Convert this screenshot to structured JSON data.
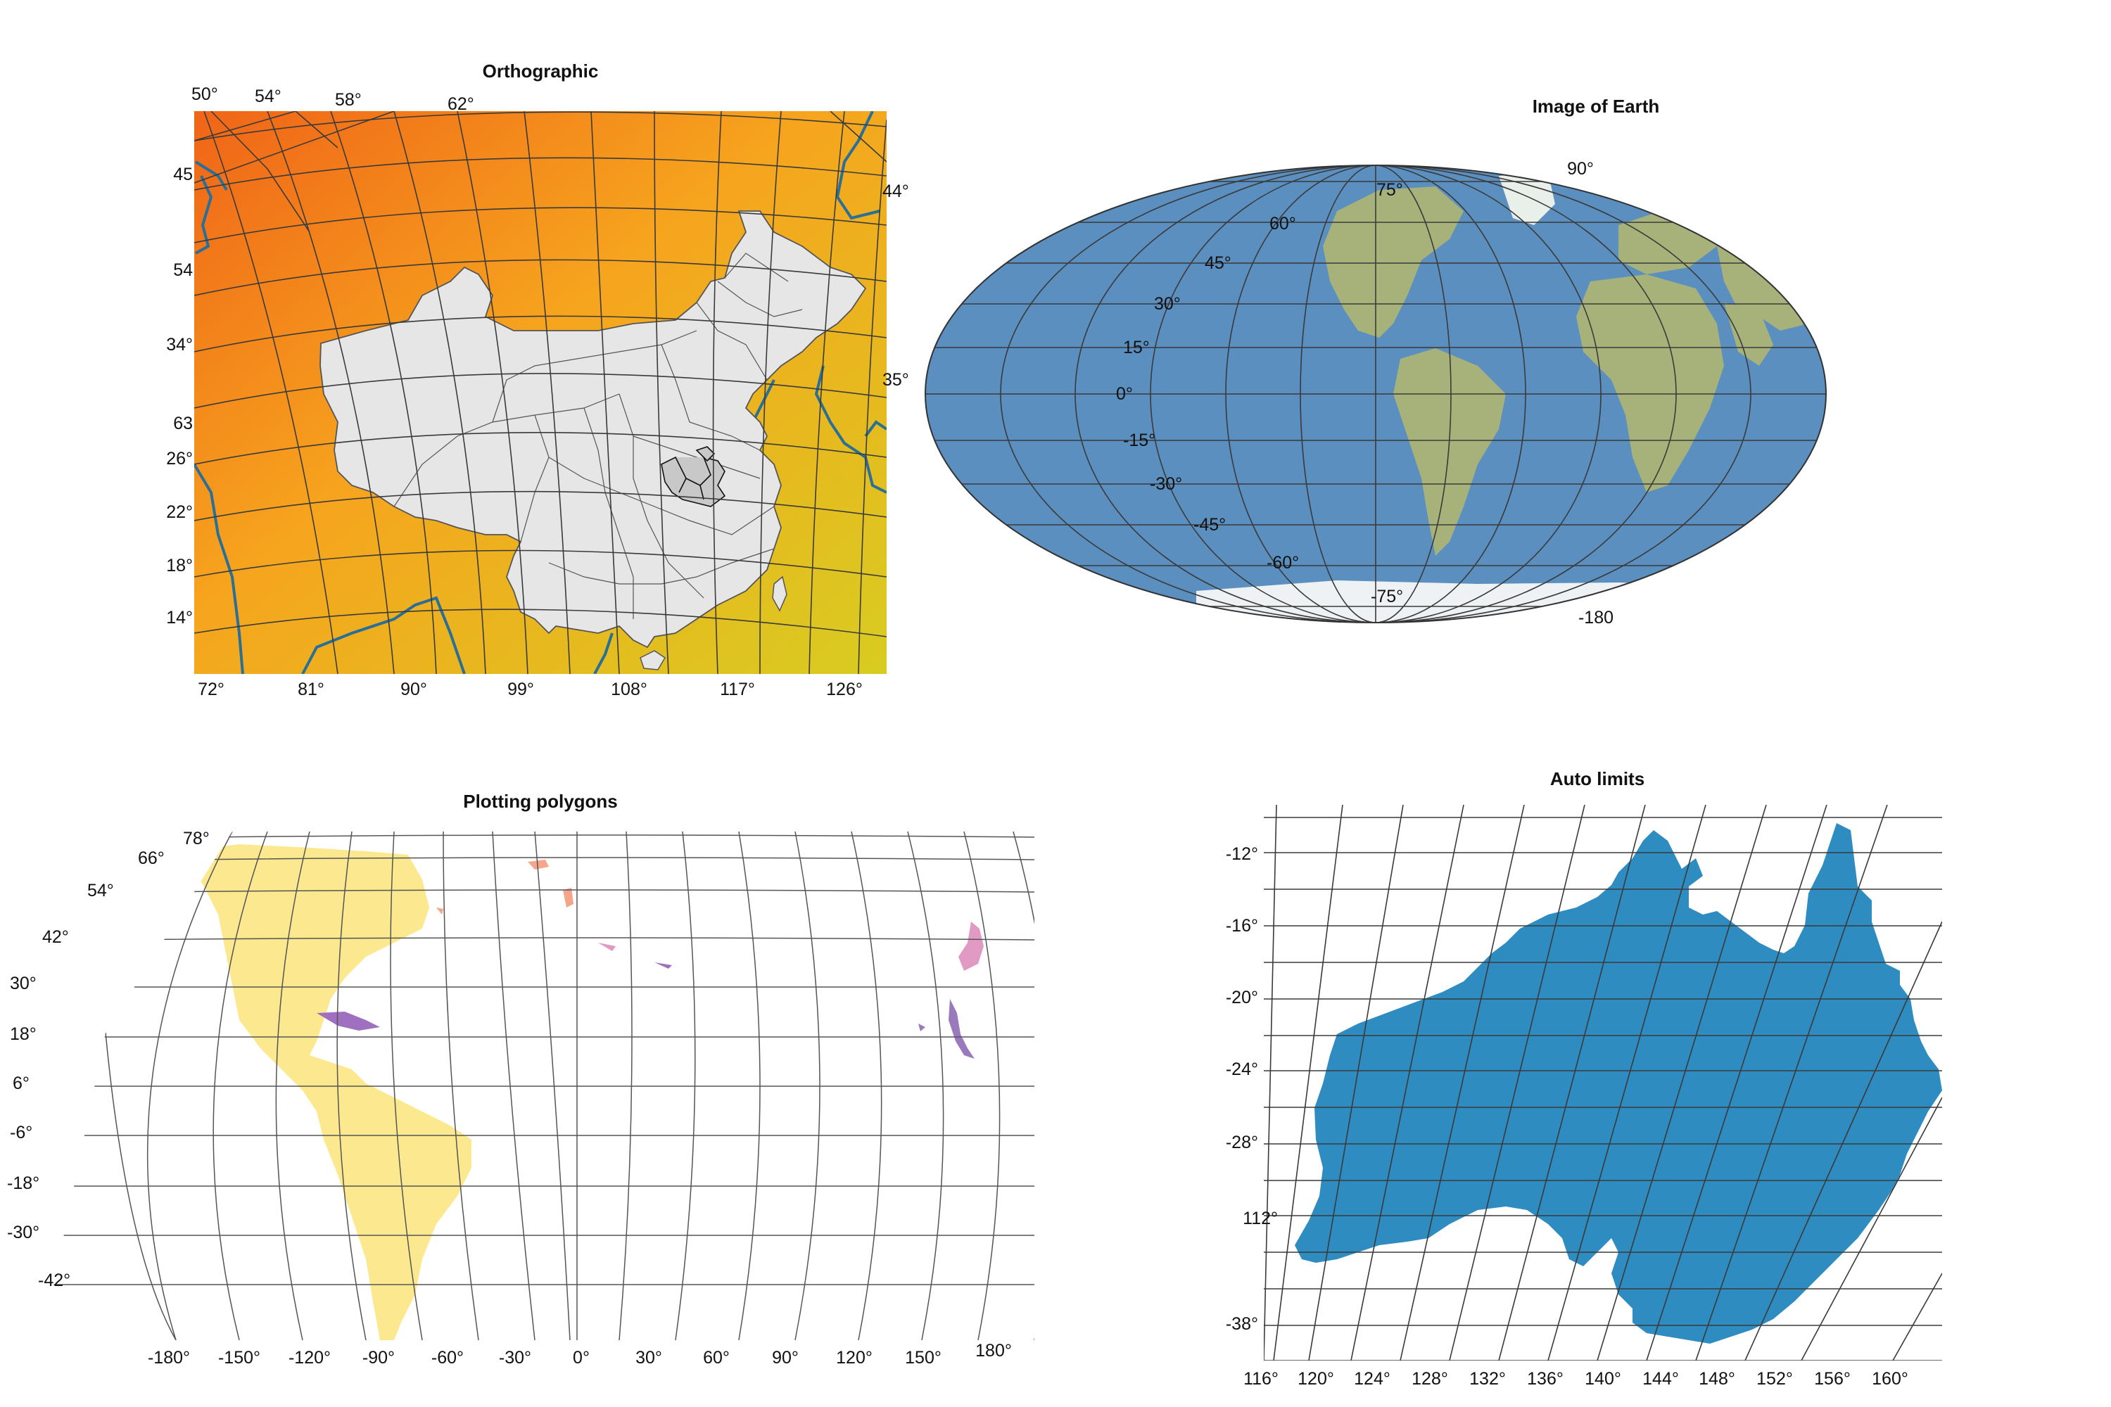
{
  "figure": {
    "panels": [
      {
        "id": "orthographic",
        "title": "Orthographic",
        "top_labels": [
          "50°",
          "54°",
          "58°",
          "62°"
        ],
        "left_labels": [
          "45",
          "54",
          "34°",
          "63",
          "26°",
          "22°",
          "18°",
          "14°"
        ],
        "right_labels": [
          "44°",
          "35°"
        ],
        "bottom_labels": [
          "72°",
          "81°",
          "90°",
          "99°",
          "108°",
          "117°",
          "126°"
        ],
        "colors": {
          "background_top": "#f06418",
          "background_bottom": "#d8cc20",
          "land_fill": "#e6e6e6",
          "coastline": "#2a6f97"
        }
      },
      {
        "id": "image-of-earth",
        "title": "Image of Earth",
        "lat_labels": [
          "90°",
          "75°",
          "60°",
          "45°",
          "30°",
          "15°",
          "0°",
          "-15°",
          "-30°",
          "-45°",
          "-60°",
          "-75°",
          "-180"
        ],
        "colors": {
          "ocean": "#5b8fbf",
          "land": "#a7b27a"
        }
      },
      {
        "id": "plotting-polygons",
        "title": "Plotting polygons",
        "lat_labels": [
          "78°",
          "66°",
          "54°",
          "42°",
          "30°",
          "18°",
          "6°",
          "-6°",
          "-18°",
          "-30°",
          "-42°"
        ],
        "lon_labels": [
          "-180°",
          "-150°",
          "-120°",
          "-90°",
          "-60°",
          "-30°",
          "0°",
          "30°",
          "60°",
          "90°",
          "120°",
          "150°",
          "180°"
        ],
        "colors": {
          "americas": "#fbe88f",
          "caribbean": "#9f6fc0",
          "japan": "#e09ac4",
          "philippines": "#9a79bd",
          "europe": "#f4a58a"
        }
      },
      {
        "id": "auto-limits",
        "title": "Auto limits",
        "lat_labels": [
          "-12°",
          "-16°",
          "-20°",
          "-24°",
          "-28°",
          "112°",
          "-38°"
        ],
        "lon_labels": [
          "116°",
          "120°",
          "124°",
          "128°",
          "132°",
          "136°",
          "140°",
          "144°",
          "148°",
          "152°",
          "156°",
          "160°"
        ],
        "colors": {
          "land": "#2f8cc1"
        }
      }
    ]
  }
}
